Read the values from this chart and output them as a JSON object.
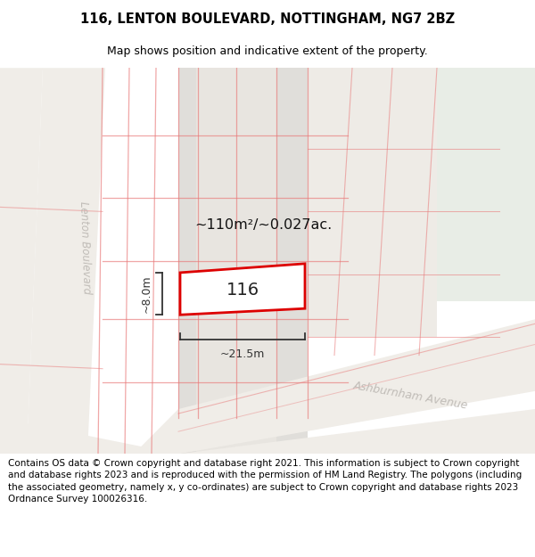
{
  "title": "116, LENTON BOULEVARD, NOTTINGHAM, NG7 2BZ",
  "subtitle": "Map shows position and indicative extent of the property.",
  "footer": "Contains OS data © Crown copyright and database right 2021. This information is subject to Crown copyright and database rights 2023 and is reproduced with the permission of HM Land Registry. The polygons (including the associated geometry, namely x, y co-ordinates) are subject to Crown copyright and database rights 2023 Ordnance Survey 100026316.",
  "title_fontsize": 10.5,
  "subtitle_fontsize": 9,
  "footer_fontsize": 7.5,
  "area_text": "~110m²/~0.027ac.",
  "width_text": "~21.5m",
  "height_text": "~8.0m",
  "house_number": "116",
  "map_bg": "#ffffff",
  "gray_block": "#e0deda",
  "road_gray": "#d4d0cb",
  "green_area": "#e8ede6",
  "red_line": "#e87878",
  "prop_red": "#dd0000",
  "street_color": "#c0bcb7",
  "dim_color": "#333333"
}
